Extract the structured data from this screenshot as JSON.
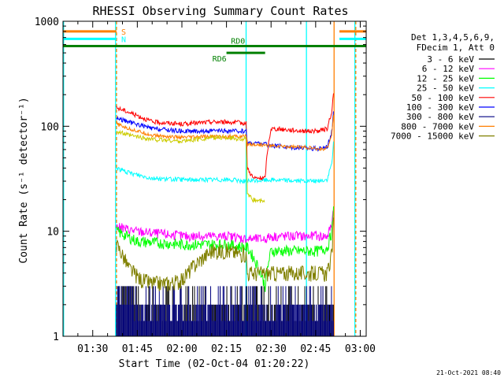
{
  "chart_data": {
    "type": "line",
    "title": "RHESSI Observing Summary Count Rates",
    "xlabel": "Start Time (02-Oct-04 01:20:22)",
    "ylabel": "Count Rate (s⁻¹ detector⁻¹)",
    "y_scale": "log",
    "ylim": [
      1,
      1000
    ],
    "xlim_minutes_after_0120": [
      0,
      102
    ],
    "x_tick_labels": [
      "01:30",
      "01:45",
      "02:00",
      "02:15",
      "02:30",
      "02:45",
      "03:00"
    ],
    "x_tick_minutes": [
      10,
      25,
      40,
      55,
      70,
      85,
      100
    ],
    "y_tick_labels": [
      "1",
      "10",
      "100",
      "1000"
    ],
    "y_tick_values": [
      1,
      10,
      100,
      1000
    ],
    "legend_placement": "right",
    "legend_header": [
      "Det 1,3,4,5,6,9,",
      "FDecim 1, Att 0"
    ],
    "flags": [
      {
        "label": "S",
        "color": "#ff7f00",
        "level": 800,
        "segments": [
          [
            0,
            18
          ],
          [
            93,
            102
          ]
        ]
      },
      {
        "label": "N",
        "color": "#00ffff",
        "level": 680,
        "segments": [
          [
            0,
            18
          ],
          [
            93,
            102
          ]
        ]
      },
      {
        "label": "RD0",
        "color": "#008000",
        "level": 580,
        "segments": [
          [
            0,
            102
          ]
        ]
      },
      {
        "label": "RD6",
        "color": "#008000",
        "level": 500,
        "segments": [
          [
            55,
            68
          ]
        ]
      }
    ],
    "vlines": [
      {
        "x": 0.2,
        "color": "#00ffff",
        "dashed": false
      },
      {
        "x": 17.7,
        "color": "#00ffff",
        "dashed": false
      },
      {
        "x": 18.0,
        "color": "#ff7f00",
        "dashed": true
      },
      {
        "x": 61.6,
        "color": "#00ffff",
        "dashed": false
      },
      {
        "x": 81.9,
        "color": "#00ffff",
        "dashed": false
      },
      {
        "x": 91.2,
        "color": "#ff7f00",
        "dashed": false
      },
      {
        "x": 98.2,
        "color": "#00ffff",
        "dashed": false
      },
      {
        "x": 98.5,
        "color": "#ff7f00",
        "dashed": true
      }
    ],
    "series": [
      {
        "name": "3 - 6 keV",
        "color": "#000000",
        "x": [
          18,
          25,
          40,
          55,
          62,
          70,
          82,
          85,
          91
        ],
        "y": [
          3,
          1,
          1,
          1,
          1,
          1,
          1,
          1,
          1
        ]
      },
      {
        "name": "6 - 12 keV",
        "color": "#ff00ff",
        "x": [
          18,
          25,
          40,
          55,
          62,
          68,
          70,
          82,
          86,
          89,
          90.5,
          91.2
        ],
        "y": [
          11,
          10,
          9,
          9,
          8.5,
          8.5,
          9,
          9,
          9,
          9,
          12,
          20
        ]
      },
      {
        "name": "12 - 25 keV",
        "color": "#00ff00",
        "x": [
          18,
          25,
          40,
          55,
          62,
          68,
          70,
          82,
          86,
          89,
          90.5,
          91.2
        ],
        "y": [
          10,
          8,
          7.5,
          7.5,
          7,
          3,
          6.5,
          6.5,
          6.5,
          7,
          10,
          18
        ]
      },
      {
        "name": "25 - 50 keV",
        "color": "#00ffff",
        "x": [
          18,
          22,
          30,
          40,
          50,
          55,
          62,
          70,
          82,
          86,
          89,
          90.5,
          91.2
        ],
        "y": [
          40,
          36,
          32,
          31,
          31,
          31,
          30,
          31,
          30,
          30,
          31,
          45,
          80
        ]
      },
      {
        "name": "50 - 100 keV",
        "color": "#ff0000",
        "x": [
          18,
          21,
          30,
          40,
          50,
          55,
          61.6,
          62,
          64,
          68,
          70,
          82,
          86,
          89,
          90.5,
          91.2
        ],
        "y": [
          150,
          140,
          110,
          105,
          110,
          110,
          107,
          40,
          32,
          32,
          95,
          90,
          90,
          95,
          140,
          230
        ]
      },
      {
        "name": "100 - 300 keV",
        "color": "#0000ff",
        "x": [
          18,
          22,
          30,
          40,
          50,
          55,
          61.6,
          62,
          68,
          70,
          82,
          86,
          89,
          90.5,
          91.2
        ],
        "y": [
          120,
          110,
          95,
          90,
          90,
          90,
          90,
          70,
          68,
          65,
          62,
          61,
          65,
          90,
          160
        ]
      },
      {
        "name": "300 - 800 keV",
        "color": "#000080",
        "x": [
          18,
          25,
          40,
          55,
          62,
          70,
          82,
          86,
          91
        ],
        "y": [
          3,
          1,
          1,
          1,
          1,
          1,
          1,
          1,
          1
        ]
      },
      {
        "name": "800 - 7000 keV",
        "color": "#ff7f00",
        "x": [
          18,
          22,
          30,
          40,
          50,
          55,
          61.6,
          62,
          68,
          70,
          82,
          86,
          89,
          90.5,
          91.2
        ],
        "y": [
          105,
          95,
          82,
          78,
          80,
          80,
          80,
          68,
          66,
          65,
          63,
          60,
          62,
          85,
          150
        ]
      },
      {
        "name": "7000 - 15000 keV",
        "color": "#808000",
        "x": [
          18,
          22,
          26,
          30,
          35,
          40,
          45,
          50,
          55,
          61.6,
          62,
          68,
          70,
          82,
          86,
          89,
          90.5,
          91.2
        ],
        "y": [
          7.5,
          4.5,
          3.5,
          3.2,
          3.2,
          3.4,
          5,
          6.5,
          6.5,
          6,
          4,
          4,
          4,
          4,
          4,
          4,
          6,
          14
        ]
      }
    ],
    "extra_series": [
      {
        "parent": "50 - 100 keV",
        "color": "#cccc00",
        "x": [
          18,
          22,
          30,
          40,
          50,
          55,
          61.6,
          62,
          64,
          68
        ],
        "y": [
          90,
          82,
          75,
          72,
          78,
          78,
          75,
          22,
          20,
          19
        ]
      }
    ]
  },
  "footer": {
    "timestamp": "21-Oct-2021 08:40"
  }
}
